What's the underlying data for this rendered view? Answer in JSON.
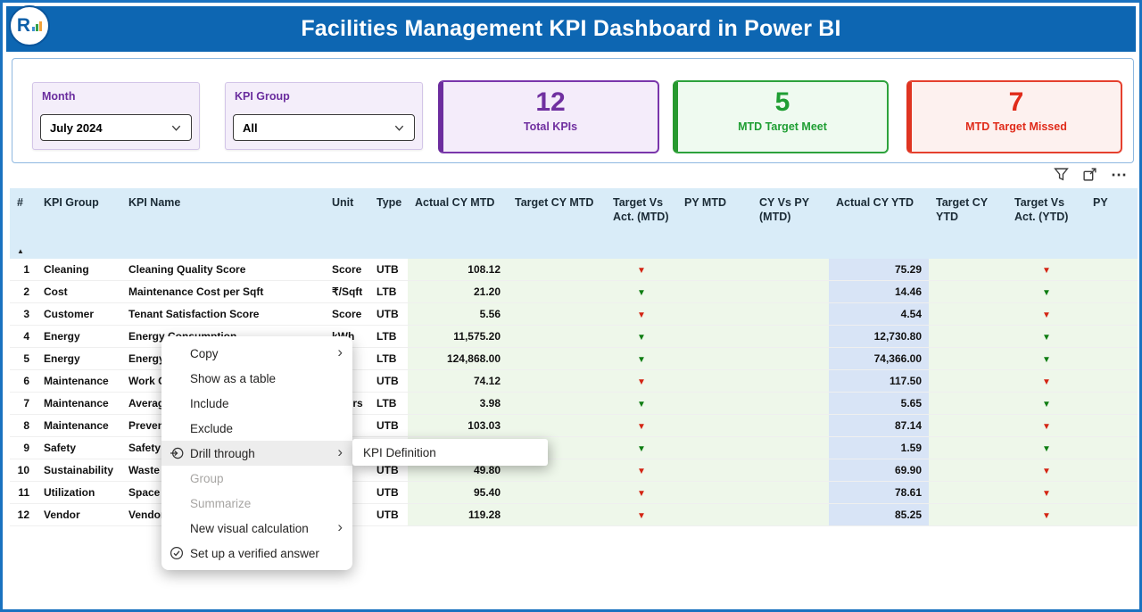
{
  "header": {
    "title": "Facilities Management KPI Dashboard in Power BI",
    "logo_letter": "R"
  },
  "filters": {
    "month": {
      "label": "Month",
      "value": "July 2024"
    },
    "kpi_group": {
      "label": "KPI Group",
      "value": "All"
    }
  },
  "cards": [
    {
      "id": "total-kpis",
      "value": "12",
      "label": "Total KPIs",
      "color": "#7030a0"
    },
    {
      "id": "mtd-target-meet",
      "value": "5",
      "label": "MTD Target Meet",
      "color": "#1f9e33"
    },
    {
      "id": "mtd-target-missed",
      "value": "7",
      "label": "MTD Target Missed",
      "color": "#e02b1a"
    }
  ],
  "visual_header": {
    "icons": [
      "filter-icon",
      "focus-mode-icon",
      "more-options-icon"
    ],
    "more_glyph": "⋯"
  },
  "table": {
    "columns": [
      "#",
      "KPI Group",
      "KPI Name",
      "Unit",
      "Type",
      "Actual CY MTD",
      "Target CY MTD",
      "Target Vs Act. (MTD)",
      "PY MTD",
      "CY Vs PY (MTD)",
      "Actual CY YTD",
      "Target CY YTD",
      "Target Vs Act. (YTD)",
      "PY"
    ],
    "sort_column": "#",
    "sort_direction": "ascending",
    "sort_glyph": "▲",
    "arrow_glyph": "▼",
    "arrow_colors": {
      "red": "#d32413",
      "green": "#0e7d12"
    },
    "rows": [
      {
        "num": "1",
        "group": "Cleaning",
        "name": "Cleaning Quality Score",
        "unit": "Score",
        "type": "UTB",
        "actual_mtd": "108.12",
        "target_vs_act_mtd": "red",
        "actual_ytd": "75.29",
        "target_vs_act_ytd": "red"
      },
      {
        "num": "2",
        "group": "Cost",
        "name": "Maintenance Cost per Sqft",
        "unit": "₹/Sqft",
        "type": "LTB",
        "actual_mtd": "21.20",
        "target_vs_act_mtd": "green",
        "actual_ytd": "14.46",
        "target_vs_act_ytd": "green"
      },
      {
        "num": "3",
        "group": "Customer",
        "name": "Tenant Satisfaction Score",
        "unit": "Score",
        "type": "UTB",
        "actual_mtd": "5.56",
        "target_vs_act_mtd": "red",
        "actual_ytd": "4.54",
        "target_vs_act_ytd": "red"
      },
      {
        "num": "4",
        "group": "Energy",
        "name": "Energy Consumption",
        "unit": "kWh",
        "type": "LTB",
        "actual_mtd": "11,575.20",
        "target_vs_act_mtd": "green",
        "actual_ytd": "12,730.80",
        "target_vs_act_ytd": "green"
      },
      {
        "num": "5",
        "group": "Energy",
        "name": "Energy Cost",
        "unit": "₹",
        "type": "LTB",
        "actual_mtd": "124,868.00",
        "target_vs_act_mtd": "green",
        "actual_ytd": "74,366.00",
        "target_vs_act_ytd": "green"
      },
      {
        "num": "6",
        "group": "Maintenance",
        "name": "Work Order Completion",
        "unit": "%",
        "type": "UTB",
        "actual_mtd": "74.12",
        "target_vs_act_mtd": "red",
        "actual_ytd": "117.50",
        "target_vs_act_ytd": "red"
      },
      {
        "num": "7",
        "group": "Maintenance",
        "name": "Average Resolution Time",
        "unit": "Hours",
        "type": "LTB",
        "actual_mtd": "3.98",
        "target_vs_act_mtd": "green",
        "actual_ytd": "5.65",
        "target_vs_act_ytd": "green"
      },
      {
        "num": "8",
        "group": "Maintenance",
        "name": "Preventive Maintenance",
        "unit": "%",
        "type": "UTB",
        "actual_mtd": "103.03",
        "target_vs_act_mtd": "red",
        "actual_ytd": "87.14",
        "target_vs_act_ytd": "red"
      },
      {
        "num": "9",
        "group": "Safety",
        "name": "Safety Incidents",
        "unit": "",
        "type": "LTB",
        "actual_mtd": "",
        "target_vs_act_mtd": "green",
        "actual_ytd": "1.59",
        "target_vs_act_ytd": "green"
      },
      {
        "num": "10",
        "group": "Sustainability",
        "name": "Waste Recycled",
        "unit": "%",
        "type": "UTB",
        "actual_mtd": "49.80",
        "target_vs_act_mtd": "red",
        "actual_ytd": "69.90",
        "target_vs_act_ytd": "red"
      },
      {
        "num": "11",
        "group": "Utilization",
        "name": "Space Utilization",
        "unit": "%",
        "type": "UTB",
        "actual_mtd": "95.40",
        "target_vs_act_mtd": "red",
        "actual_ytd": "78.61",
        "target_vs_act_ytd": "red"
      },
      {
        "num": "12",
        "group": "Vendor",
        "name": "Vendor Performance",
        "unit": "",
        "type": "UTB",
        "actual_mtd": "119.28",
        "target_vs_act_mtd": "red",
        "actual_ytd": "85.25",
        "target_vs_act_ytd": "red"
      }
    ]
  },
  "context_menu": {
    "chevron_glyph": "›",
    "items": [
      {
        "label": "Copy",
        "submenu": true
      },
      {
        "label": "Show as a table"
      },
      {
        "label": "Include"
      },
      {
        "label": "Exclude"
      },
      {
        "label": "Drill through",
        "icon": "drill-through-icon",
        "submenu": true,
        "highlighted": true
      },
      {
        "label": "Group",
        "disabled": true
      },
      {
        "label": "Summarize",
        "disabled": true
      },
      {
        "label": "New visual calculation",
        "submenu": true
      },
      {
        "label": "Set up a verified answer",
        "icon": "verified-answer-icon"
      }
    ],
    "submenu_items": [
      {
        "label": "KPI Definition"
      }
    ]
  }
}
